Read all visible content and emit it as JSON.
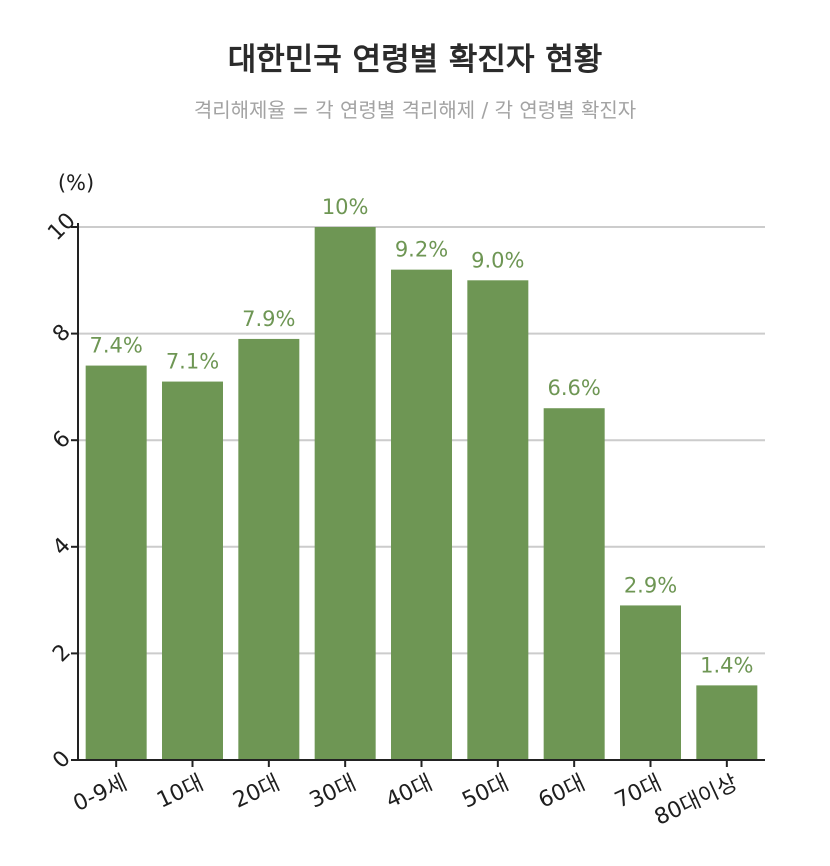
{
  "chart_data": {
    "type": "bar",
    "title": "대한민국 연령별 확진자 현황",
    "subtitle": "격리해제율 = 각 연령별 격리해제 / 각 연령별 확진자",
    "ylabel": "(%)",
    "categories": [
      "0-9세",
      "10대",
      "20대",
      "30대",
      "40대",
      "50대",
      "60대",
      "70대",
      "80대이상"
    ],
    "values": [
      7.4,
      7.1,
      7.9,
      10,
      9.2,
      9.0,
      6.6,
      2.9,
      1.4
    ],
    "data_labels": [
      "7.4%",
      "7.1%",
      "7.9%",
      "10%",
      "9.2%",
      "9.0%",
      "6.6%",
      "2.9%",
      "1.4%"
    ],
    "yticks": [
      0,
      2,
      4,
      6,
      8,
      10
    ],
    "ylim": [
      0,
      10
    ],
    "grid": true,
    "bar_color": "#6e9654",
    "label_color": "#6e9654"
  }
}
